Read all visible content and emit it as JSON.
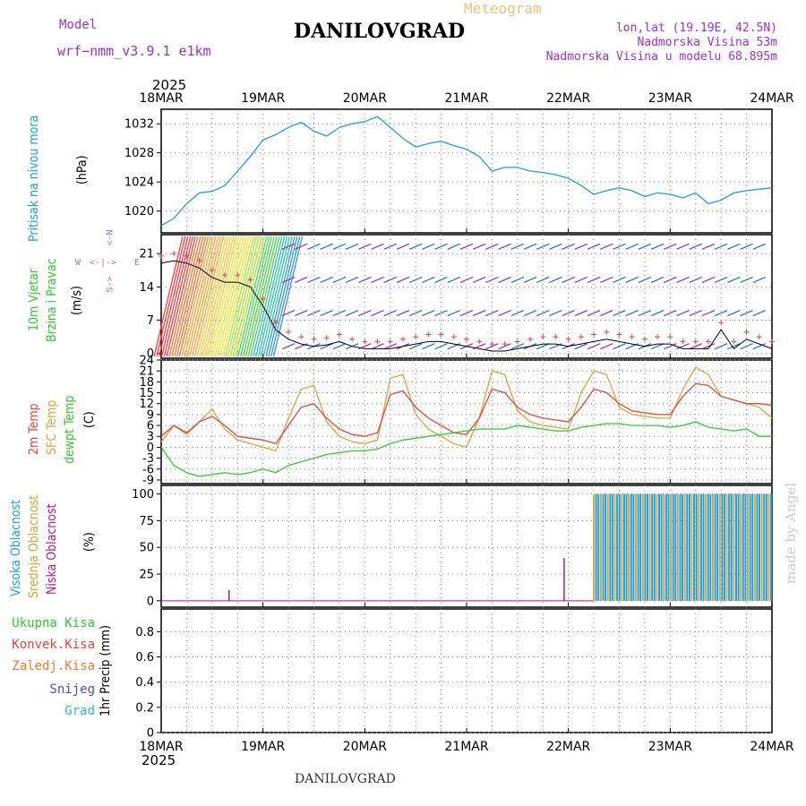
{
  "header": {
    "model_label": "Model",
    "model_name": "wrf−nmm_v3.9.1  e1km",
    "title": "DANILOVGRAD",
    "meteogram_label": "Meteogram",
    "lonlat": "lon,lat (19.19E, 42.5N)",
    "elevation": "Nadmorska Visina 53m",
    "model_elevation": "Nadmorska Visina u modelu 68.895m",
    "year_top": "2025",
    "year_bottom": "2025",
    "footer_title": "DANILOVGRAD",
    "watermark": "made by Angel"
  },
  "colors": {
    "pressure": "#1f9fdf",
    "temp2m": "#e8453c",
    "sfc": "#dba43a",
    "dew": "#2ecc2e",
    "visoka": "#1f9fdf",
    "srednja": "#dba43a",
    "niska": "#c0187a",
    "wind_label": "#2ecc2e",
    "wind_arrow": "#1a6fd8",
    "wind_legend": "#b36ae2",
    "header_purple": "#9b30d9",
    "meteogram": "#e6c57a"
  },
  "x_ticks": [
    "18MAR",
    "19MAR",
    "20MAR",
    "21MAR",
    "22MAR",
    "23MAR",
    "24MAR"
  ],
  "panels": {
    "pressure": {
      "label": "Pritisak na nivou mora",
      "unit": "(hPa)",
      "yticks": [
        "1020",
        "1024",
        "1028",
        "1032"
      ]
    },
    "wind": {
      "label_1": "10m Vjetar",
      "label_2": "Brzina i Pravac",
      "unit": "(m/s)",
      "yticks": [
        "0",
        "7",
        "14",
        "21"
      ],
      "compass": {
        "n": "N",
        "s": "S",
        "w": "W",
        "e": "E"
      }
    },
    "temp": {
      "label_1": "2m Temp",
      "label_2": "SFC Temp",
      "label_3": "dewpt Temp",
      "unit": "(C)",
      "yticks": [
        "-9",
        "-6",
        "-3",
        "0",
        "3",
        "6",
        "9",
        "12",
        "15",
        "18",
        "21",
        "24"
      ]
    },
    "cloud": {
      "label_1": "Visoka Oblacnost",
      "label_2": "Srednja Oblacnost",
      "label_3": "Niska Oblacnost",
      "unit": "(%)",
      "yticks": [
        "0",
        "25",
        "50",
        "75",
        "100"
      ]
    },
    "precip": {
      "legend": [
        "Ukupna Kisa",
        "Konvek.Kisa",
        "Zaledj.Kisa",
        "Snijeg",
        "Grad"
      ],
      "legend_colors": [
        "#2ecc2e",
        "#e8453c",
        "#f07a30",
        "#4a4ae0",
        "#22c6b8"
      ],
      "unit": "1hr Precip (mm)",
      "yticks": [
        "0",
        "0.2",
        "0.4",
        "0.6",
        "0.8"
      ]
    }
  },
  "chart_data": [
    {
      "type": "line",
      "title": "Pritisak na nivou mora",
      "ylabel": "(hPa)",
      "ylim": [
        1017,
        1034
      ],
      "x": [
        0,
        3,
        6,
        9,
        12,
        15,
        18,
        21,
        24,
        27,
        30,
        33,
        36,
        39,
        42,
        45,
        48,
        51,
        54,
        57,
        60,
        63,
        66,
        69,
        72,
        75,
        78,
        81,
        84,
        87,
        90,
        93,
        96,
        99,
        102,
        105,
        108,
        111,
        114,
        117,
        120,
        123,
        126,
        129,
        132,
        135,
        138,
        141,
        144
      ],
      "x_unit": "hours from 18MAR 00",
      "series": [
        {
          "values": [
            1018,
            1019,
            1021,
            1022.5,
            1022.7,
            1023.5,
            1025.5,
            1027.5,
            1029.8,
            1030.5,
            1031.5,
            1032.2,
            1031,
            1030.3,
            1031.5,
            1032,
            1032.3,
            1033,
            1031.5,
            1030,
            1028.8,
            1029.3,
            1029.6,
            1029,
            1028.5,
            1027.5,
            1025.5,
            1026,
            1026,
            1025.5,
            1025.3,
            1025,
            1024.5,
            1023.5,
            1022.3,
            1022.8,
            1023.2,
            1022.8,
            1022,
            1022.5,
            1022.3,
            1021.8,
            1022.5,
            1021,
            1021.5,
            1022.5,
            1022.8,
            1023,
            1023.2
          ]
        }
      ]
    },
    {
      "type": "line",
      "title": "10m Vjetar Brzina i Pravac",
      "ylabel": "(m/s)",
      "ylim": [
        -1,
        25
      ],
      "x": [
        0,
        3,
        6,
        9,
        12,
        15,
        18,
        21,
        24,
        27,
        30,
        33,
        36,
        39,
        42,
        45,
        48,
        51,
        54,
        57,
        60,
        63,
        66,
        69,
        72,
        75,
        78,
        81,
        84,
        87,
        90,
        93,
        96,
        99,
        102,
        105,
        108,
        111,
        114,
        117,
        120,
        123,
        126,
        129,
        132,
        135,
        138,
        141,
        144
      ],
      "series": [
        {
          "values": [
            19,
            19.5,
            19,
            18,
            16,
            15,
            15,
            14,
            10,
            5,
            3,
            2,
            1.5,
            1.8,
            2.5,
            1.5,
            1,
            1,
            1,
            1.5,
            2,
            2.5,
            2.5,
            2,
            1.5,
            1,
            0.5,
            0.5,
            1,
            1.5,
            2,
            2,
            1.5,
            2,
            2.5,
            3,
            2.5,
            2,
            1.5,
            2,
            2,
            1,
            1,
            1,
            5,
            1,
            3,
            2,
            1
          ]
        }
      ]
    },
    {
      "type": "line",
      "title": "2m Temp / SFC Temp / dewpt Temp",
      "ylabel": "(C)",
      "ylim": [
        -10,
        24
      ],
      "x": [
        0,
        3,
        6,
        9,
        12,
        15,
        18,
        21,
        24,
        27,
        30,
        33,
        36,
        39,
        42,
        45,
        48,
        51,
        54,
        57,
        60,
        63,
        66,
        69,
        72,
        75,
        78,
        81,
        84,
        87,
        90,
        93,
        96,
        99,
        102,
        105,
        108,
        111,
        114,
        117,
        120,
        123,
        126,
        129,
        132,
        135,
        138,
        141,
        144
      ],
      "series": [
        {
          "name": "2m Temp",
          "values": [
            3,
            6,
            4,
            7,
            8.5,
            6,
            3,
            2.5,
            2,
            1,
            6,
            11,
            12,
            8,
            5,
            3.5,
            3,
            4,
            14.5,
            15.5,
            11,
            8,
            6,
            4,
            3.5,
            8,
            16,
            15,
            11,
            9,
            8,
            7.5,
            7,
            11,
            16,
            15,
            12,
            10,
            9.5,
            9,
            9,
            14,
            17.5,
            17,
            14,
            13,
            12,
            12,
            11.5
          ]
        },
        {
          "name": "SFC Temp",
          "values": [
            1.5,
            6,
            3.5,
            7,
            10.5,
            5,
            2,
            1,
            0,
            -1,
            8,
            16,
            17,
            7,
            3,
            1.5,
            1,
            2,
            19,
            20,
            9,
            5,
            3,
            1,
            0,
            8,
            21,
            20,
            10,
            7,
            6,
            5.5,
            5,
            15,
            21,
            20,
            11,
            9,
            8.5,
            8,
            8,
            16,
            22,
            20,
            14,
            13,
            12,
            11,
            8
          ]
        },
        {
          "name": "dewpt Temp",
          "values": [
            0,
            -5,
            -7,
            -8,
            -7.5,
            -7,
            -7.5,
            -7,
            -6,
            -7,
            -5,
            -4,
            -3,
            -2,
            -1.5,
            -1,
            -1,
            -0.5,
            1,
            2,
            2.5,
            3,
            3.5,
            4,
            4.5,
            5,
            5,
            5,
            6,
            5.5,
            5,
            4.5,
            4.5,
            5.5,
            6,
            6.5,
            6.5,
            6,
            6,
            6,
            5.5,
            6,
            7,
            5.5,
            5,
            4.5,
            5,
            3,
            3
          ]
        }
      ]
    },
    {
      "type": "bar",
      "title": "Visoka / Srednja / Niska Oblacnost",
      "ylabel": "(%)",
      "ylim": [
        0,
        100
      ],
      "bars_niska": [
        {
          "x": 16,
          "value": 10
        },
        {
          "x": 95,
          "value": 40
        }
      ],
      "bars_high_region_x": [
        102,
        144
      ],
      "bars_high_value": 100
    },
    {
      "type": "line",
      "title": "1hr Precip",
      "ylabel": "1hr Precip (mm)",
      "ylim": [
        0,
        1
      ],
      "series": [
        {
          "name": "Ukupna Kisa",
          "values": []
        },
        {
          "name": "Konvek.Kisa",
          "values": []
        },
        {
          "name": "Zaledj.Kisa",
          "values": []
        },
        {
          "name": "Snijeg",
          "values": []
        },
        {
          "name": "Grad",
          "values": []
        }
      ]
    }
  ]
}
